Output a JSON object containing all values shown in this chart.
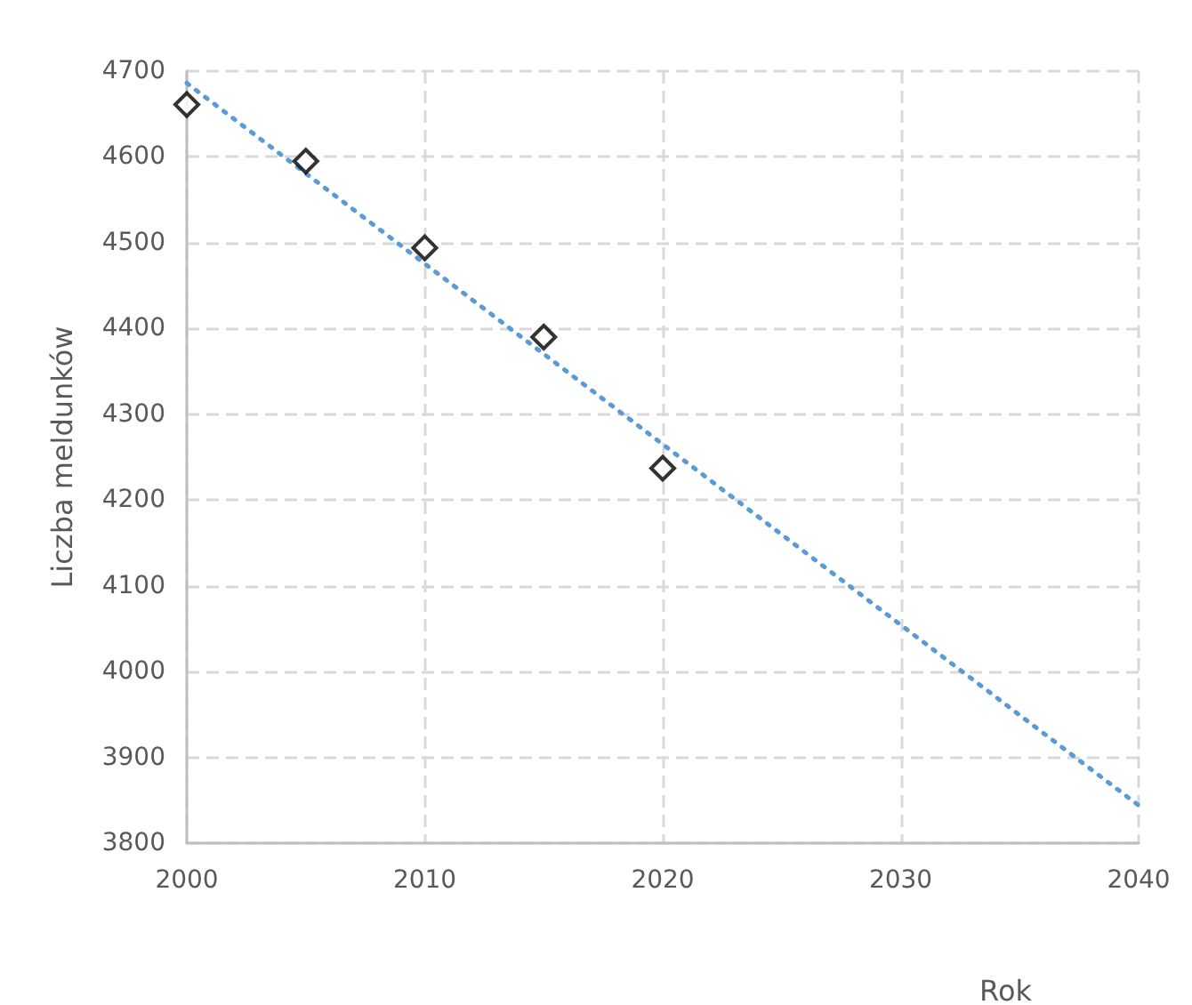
{
  "chart_data": {
    "type": "scatter",
    "xlabel": "Rok",
    "ylabel": "Liczba meldunków",
    "x": [
      2000,
      2005,
      2010,
      2015,
      2020
    ],
    "series": [
      {
        "color": "#000000",
        "marker": "diamond",
        "values": [
          4661,
          4595,
          4494,
          4390,
          4237
        ]
      },
      {
        "type": "line",
        "color": "#5b9bd5",
        "line_style": "dotted",
        "marker": "none",
        "x": [
          2000,
          2040
        ],
        "values": [
          4686,
          3844
        ]
      }
    ],
    "xlim": [
      2000,
      2040
    ],
    "xticks": [
      2000,
      2010,
      2020,
      2030,
      2040
    ],
    "ylim": [
      3800,
      4700
    ],
    "yticks": [
      3800,
      3900,
      4000,
      4100,
      4200,
      4300,
      4400,
      4500,
      4600,
      4700
    ],
    "grid": true
  }
}
